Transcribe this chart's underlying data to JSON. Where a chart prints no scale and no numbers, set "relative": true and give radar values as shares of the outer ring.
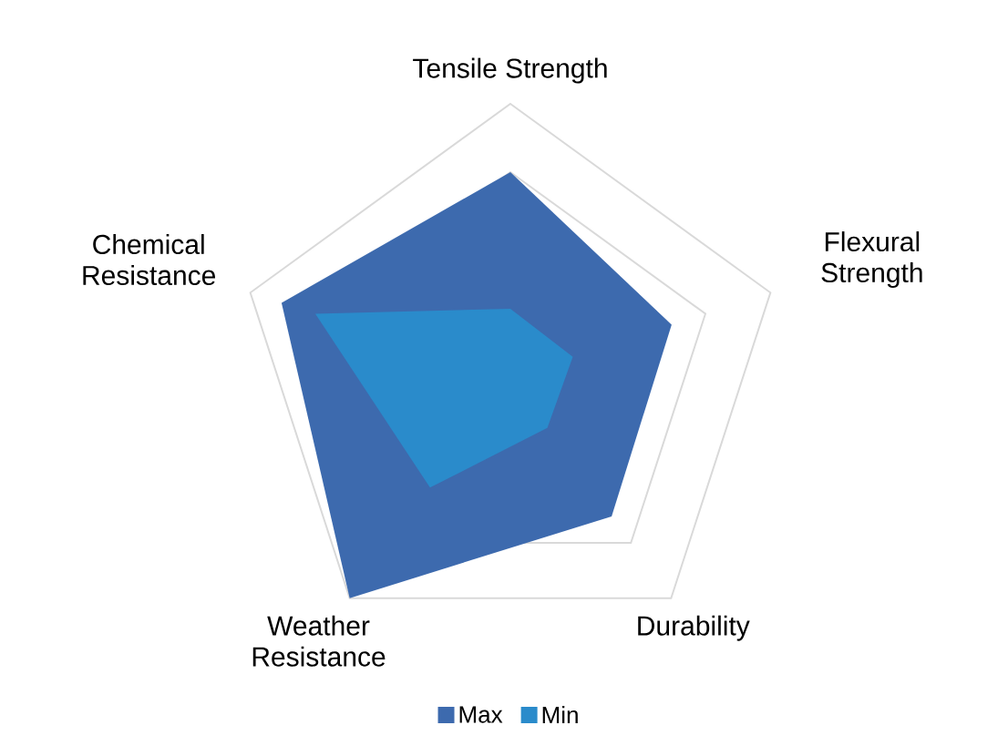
{
  "chart_data": {
    "type": "radar",
    "relative": true,
    "grid": true,
    "legend": "bottom",
    "categories": [
      "Tensile Strength",
      "Flexural Strength",
      "Durability",
      "Weather Resistance",
      "Chemical Resistance"
    ],
    "series": [
      {
        "name": "Max",
        "color": "#3d6aae",
        "values": [
          0.75,
          0.62,
          0.63,
          1.0,
          0.88
        ]
      },
      {
        "name": "Min",
        "color": "#2a8bcb",
        "values": [
          0.25,
          0.24,
          0.23,
          0.5,
          0.75
        ]
      }
    ]
  }
}
